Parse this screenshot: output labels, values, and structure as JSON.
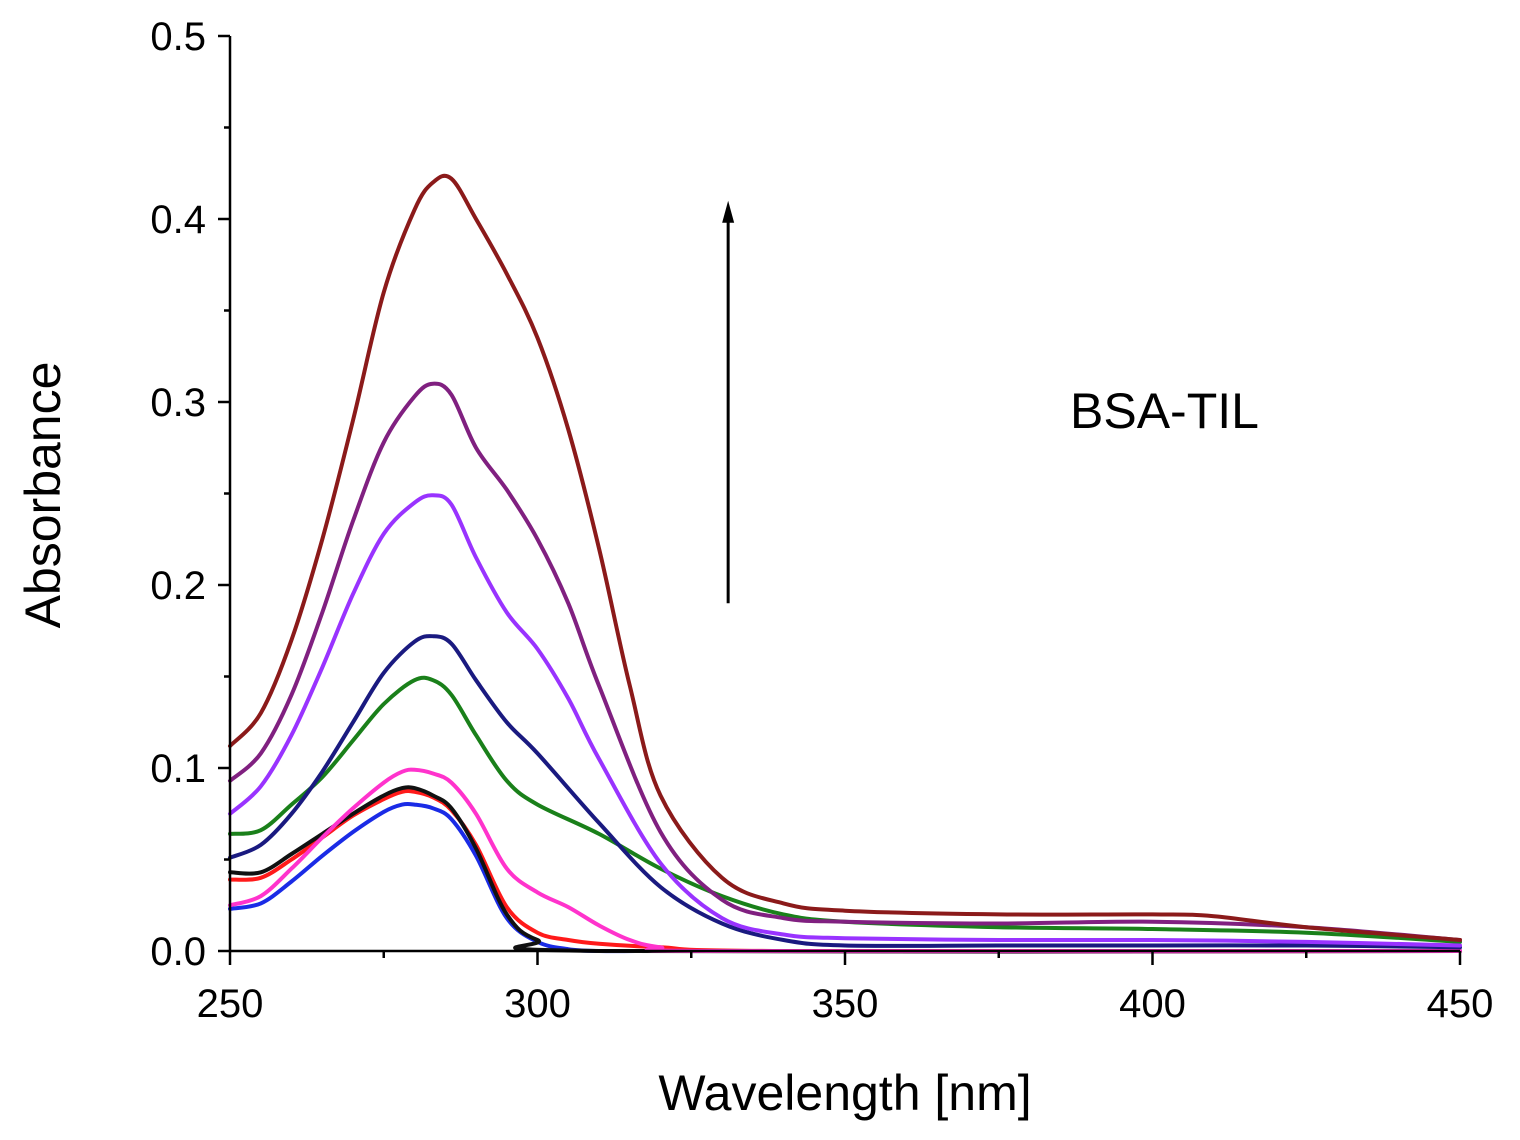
{
  "chart_data": {
    "type": "line",
    "title": "",
    "xlabel": "Wavelength [nm]",
    "ylabel": "Absorbance",
    "xlim": [
      250,
      450
    ],
    "ylim": [
      0.0,
      0.5
    ],
    "xticks": [
      250,
      300,
      350,
      400,
      450
    ],
    "xtick_labels": [
      "250",
      "300",
      "350",
      "400",
      "450"
    ],
    "yticks": [
      0.0,
      0.1,
      0.2,
      0.3,
      0.4,
      0.5
    ],
    "ytick_labels": [
      "0.0",
      "0.1",
      "0.2",
      "0.3",
      "0.4",
      "0.5"
    ],
    "grid": false,
    "annotation": "BSA-TIL",
    "arrow": {
      "x": 331,
      "y_from": 0.19,
      "y_to": 0.41,
      "direction": "up"
    },
    "series": [
      {
        "name": "blue",
        "color": "#1a2be6",
        "x": [
          250,
          255,
          260,
          265,
          270,
          275,
          278,
          280,
          283,
          286,
          290,
          295,
          300,
          305,
          310,
          320,
          350,
          450
        ],
        "y": [
          0.023,
          0.026,
          0.038,
          0.052,
          0.065,
          0.076,
          0.08,
          0.08,
          0.078,
          0.072,
          0.052,
          0.018,
          0.005,
          0.001,
          0.0,
          0.0,
          0.0,
          0.0
        ]
      },
      {
        "name": "red",
        "color": "#ff1a1a",
        "x": [
          250,
          255,
          260,
          265,
          270,
          275,
          278,
          280,
          283,
          286,
          290,
          295,
          300,
          305,
          310,
          320,
          340,
          450
        ],
        "y": [
          0.039,
          0.04,
          0.05,
          0.062,
          0.074,
          0.083,
          0.087,
          0.087,
          0.084,
          0.077,
          0.058,
          0.024,
          0.01,
          0.006,
          0.004,
          0.002,
          0.0,
          0.0
        ]
      },
      {
        "name": "black",
        "color": "#111111",
        "x": [
          250,
          255,
          260,
          265,
          270,
          275,
          278,
          280,
          283,
          286,
          290,
          295,
          300,
          310,
          450
        ],
        "y": [
          0.043,
          0.043,
          0.053,
          0.064,
          0.075,
          0.085,
          0.089,
          0.089,
          0.085,
          0.078,
          0.056,
          0.02,
          0.006,
          0.0,
          0.0
        ]
      },
      {
        "name": "magenta",
        "color": "#ff33cc",
        "x": [
          250,
          255,
          260,
          265,
          270,
          275,
          278,
          280,
          283,
          286,
          290,
          295,
          300,
          305,
          310,
          315,
          320,
          330,
          450
        ],
        "y": [
          0.025,
          0.03,
          0.045,
          0.062,
          0.078,
          0.092,
          0.098,
          0.099,
          0.097,
          0.092,
          0.075,
          0.045,
          0.032,
          0.024,
          0.014,
          0.006,
          0.002,
          0.0,
          0.0
        ]
      },
      {
        "name": "green",
        "color": "#1a801a",
        "x": [
          250,
          255,
          260,
          265,
          270,
          275,
          280,
          283,
          286,
          290,
          295,
          300,
          310,
          320,
          330,
          340,
          350,
          375,
          400,
          425,
          450
        ],
        "y": [
          0.064,
          0.066,
          0.08,
          0.095,
          0.115,
          0.135,
          0.148,
          0.148,
          0.14,
          0.118,
          0.093,
          0.08,
          0.064,
          0.045,
          0.03,
          0.02,
          0.016,
          0.013,
          0.012,
          0.01,
          0.005
        ]
      },
      {
        "name": "navy",
        "color": "#1a1a80",
        "x": [
          250,
          255,
          260,
          265,
          270,
          275,
          280,
          283,
          286,
          290,
          295,
          300,
          310,
          320,
          330,
          340,
          350,
          375,
          400,
          425,
          450
        ],
        "y": [
          0.051,
          0.058,
          0.075,
          0.098,
          0.125,
          0.152,
          0.169,
          0.172,
          0.168,
          0.148,
          0.125,
          0.108,
          0.07,
          0.035,
          0.015,
          0.006,
          0.003,
          0.003,
          0.003,
          0.003,
          0.002
        ]
      },
      {
        "name": "violet",
        "color": "#9933ff",
        "x": [
          250,
          255,
          260,
          265,
          270,
          275,
          280,
          283,
          286,
          290,
          295,
          300,
          305,
          310,
          320,
          330,
          340,
          350,
          375,
          400,
          425,
          450
        ],
        "y": [
          0.075,
          0.09,
          0.118,
          0.155,
          0.195,
          0.228,
          0.245,
          0.249,
          0.244,
          0.215,
          0.185,
          0.165,
          0.138,
          0.105,
          0.048,
          0.018,
          0.009,
          0.007,
          0.006,
          0.006,
          0.005,
          0.003
        ]
      },
      {
        "name": "purple",
        "color": "#802080",
        "x": [
          250,
          255,
          260,
          265,
          270,
          275,
          280,
          283,
          286,
          290,
          295,
          300,
          305,
          310,
          320,
          330,
          340,
          350,
          375,
          400,
          425,
          450
        ],
        "y": [
          0.093,
          0.108,
          0.14,
          0.185,
          0.235,
          0.278,
          0.303,
          0.31,
          0.304,
          0.275,
          0.252,
          0.225,
          0.19,
          0.145,
          0.065,
          0.028,
          0.018,
          0.016,
          0.015,
          0.016,
          0.013,
          0.006
        ]
      },
      {
        "name": "maroon",
        "color": "#8b1a1a",
        "x": [
          250,
          255,
          260,
          265,
          270,
          275,
          280,
          283,
          286,
          290,
          295,
          300,
          305,
          310,
          315,
          320,
          330,
          340,
          350,
          375,
          400,
          410,
          425,
          450
        ],
        "y": [
          0.112,
          0.13,
          0.17,
          0.225,
          0.29,
          0.36,
          0.405,
          0.42,
          0.422,
          0.4,
          0.37,
          0.335,
          0.285,
          0.22,
          0.145,
          0.085,
          0.04,
          0.026,
          0.022,
          0.02,
          0.02,
          0.019,
          0.013,
          0.006
        ]
      }
    ]
  }
}
